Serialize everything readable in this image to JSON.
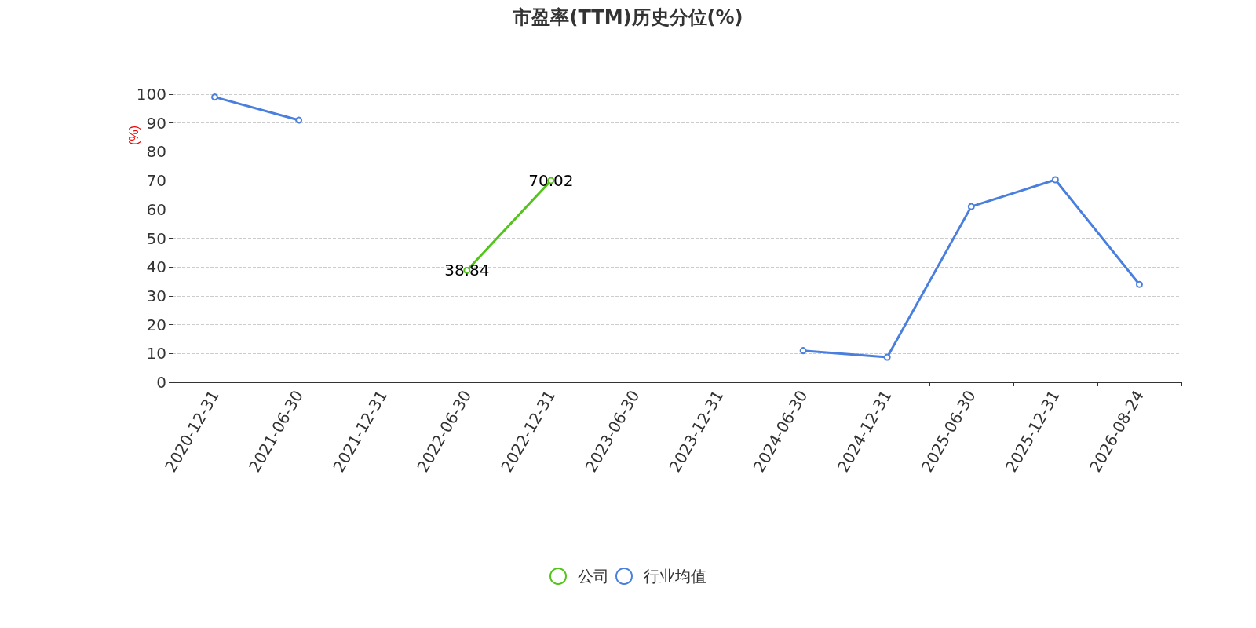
{
  "chart_data": {
    "type": "line",
    "title": "市盈率(TTM)历史分位(%)",
    "ylabel": "(%)",
    "categories": [
      "2020-12-31",
      "2021-06-30",
      "2021-12-31",
      "2022-06-30",
      "2022-12-31",
      "2023-06-30",
      "2023-12-31",
      "2024-06-30",
      "2024-12-31",
      "2025-06-30",
      "2025-12-31",
      "2026-08-24"
    ],
    "series": [
      {
        "name": "公司",
        "color": "#52c41a",
        "values": [
          null,
          null,
          null,
          38.84,
          70.02,
          null,
          null,
          null,
          null,
          null,
          null,
          null
        ],
        "value_labels": [
          null,
          null,
          null,
          "38.84",
          "70.02",
          null,
          null,
          null,
          null,
          null,
          null,
          null
        ]
      },
      {
        "name": "行业均值",
        "color": "#4a7fde",
        "values": [
          99,
          91,
          null,
          null,
          null,
          null,
          null,
          11,
          8.7,
          61,
          70.3,
          34
        ]
      }
    ],
    "ylim": [
      0,
      100
    ],
    "yticks": [
      0,
      10,
      20,
      30,
      40,
      50,
      60,
      70,
      80,
      90,
      100
    ],
    "grid": "y",
    "legend": "bottom",
    "marker": "circle",
    "line_style": "solid"
  }
}
